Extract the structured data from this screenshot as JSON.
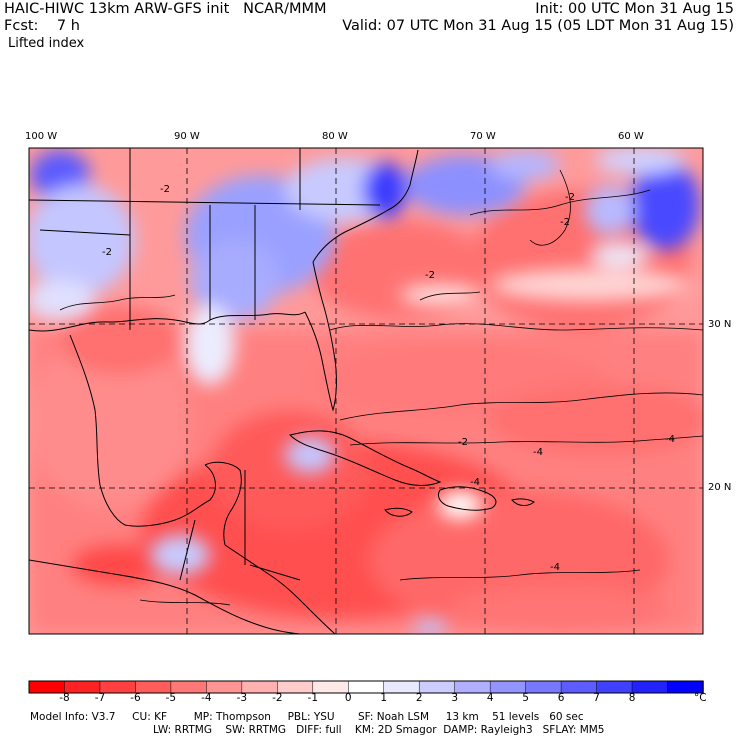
{
  "header": {
    "title": "HAIC-HIWC 13km ARW-GFS init   NCAR/MMM",
    "init": "Init: 00 UTC Mon 31 Aug 15",
    "fcst": "Fcst:    7 h",
    "valid": "Valid: 07 UTC Mon 31 Aug 15 (05 LDT Mon 31 Aug 15)",
    "field": "Lifted index"
  },
  "axes": {
    "lon_labels": [
      "100 W",
      "90 W",
      "80 W",
      "70 W",
      "60 W"
    ],
    "lat_labels": [
      "30 N",
      "20 N"
    ]
  },
  "contour_labels": [
    "-2",
    "-2",
    "-2",
    "-2",
    "-2",
    "-2",
    "-4",
    "-4",
    "-4",
    "-4"
  ],
  "colorbar": {
    "labels": [
      "-8",
      "-7",
      "-6",
      "-5",
      "-4",
      "-3",
      "-2",
      "-1",
      "0",
      "1",
      "2",
      "3",
      "4",
      "5",
      "6",
      "7",
      "8"
    ],
    "unit": "°C",
    "colors": [
      "#ff0000",
      "#ff2222",
      "#ff4040",
      "#ff5c5c",
      "#ff7878",
      "#ff9494",
      "#ffb0b0",
      "#ffcccc",
      "#ffe8e8",
      "#ffffff",
      "#e8e8ff",
      "#ccccff",
      "#b0b0ff",
      "#9494ff",
      "#7878ff",
      "#5c5cff",
      "#4040ff",
      "#2222ff",
      "#0000ff"
    ]
  },
  "footer": {
    "line1": "Model Info: V3.7     CU: KF        MP: Thompson     PBL: YSU       SF: Noah LSM     13 km    51 levels   60 sec",
    "line2": "LW: RRTMG    SW: RRTMG   DIFF: full    KM: 2D Smagor  DAMP: Rayleigh3   SFLAY: MM5"
  }
}
